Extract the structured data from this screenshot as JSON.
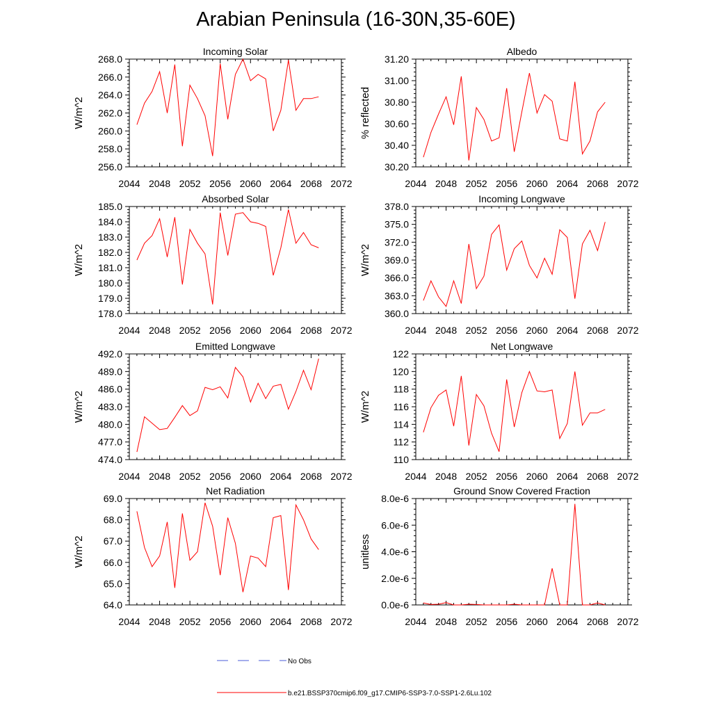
{
  "figure": {
    "title": "Arabian Peninsula (16-30N,35-60E)",
    "legend": [
      {
        "label": "No Obs",
        "color": "#4a5bd8",
        "style": "dashed"
      },
      {
        "label": "b.e21.BSSP370cmip6.f09_g17.CMIP6-SSP3-7.0-SSP1-2.6Lu.102",
        "color": "#ff0000",
        "style": "solid"
      }
    ]
  },
  "chart_data": [
    {
      "type": "line",
      "title": "Incoming Solar",
      "ylabel": "W/m^2",
      "xlim": [
        2044,
        2072
      ],
      "xticks": [
        "2044",
        "2048",
        "2052",
        "2056",
        "2060",
        "2064",
        "2068",
        "2072"
      ],
      "ylim": [
        256,
        268
      ],
      "yticks": [
        "256.0",
        "258.0",
        "260.0",
        "262.0",
        "264.0",
        "266.0",
        "268.0"
      ],
      "x": [
        2045,
        2046,
        2047,
        2048,
        2049,
        2050,
        2051,
        2052,
        2053,
        2054,
        2055,
        2056,
        2057,
        2058,
        2059,
        2060,
        2061,
        2062,
        2063,
        2064,
        2065,
        2066,
        2067,
        2068,
        2069
      ],
      "series": [
        {
          "color": "#ff0000",
          "values": [
            260.7,
            263.1,
            264.4,
            266.6,
            262.0,
            267.4,
            258.3,
            265.1,
            263.6,
            261.7,
            257.2,
            267.5,
            261.3,
            266.3,
            268.0,
            265.6,
            266.3,
            265.8,
            260.0,
            262.3,
            267.9,
            262.3,
            263.6,
            263.6,
            263.8
          ]
        }
      ]
    },
    {
      "type": "line",
      "title": "Albedo",
      "ylabel": "% reflected",
      "xlim": [
        2044,
        2072
      ],
      "xticks": [
        "2044",
        "2048",
        "2052",
        "2056",
        "2060",
        "2064",
        "2068",
        "2072"
      ],
      "ylim": [
        30.2,
        31.2
      ],
      "yticks": [
        "30.20",
        "30.40",
        "30.60",
        "30.80",
        "31.00",
        "31.20"
      ],
      "x": [
        2045,
        2046,
        2047,
        2048,
        2049,
        2050,
        2051,
        2052,
        2053,
        2054,
        2055,
        2056,
        2057,
        2058,
        2059,
        2060,
        2061,
        2062,
        2063,
        2064,
        2065,
        2066,
        2067,
        2068,
        2069
      ],
      "series": [
        {
          "color": "#ff0000",
          "values": [
            30.29,
            30.52,
            30.69,
            30.85,
            30.59,
            31.04,
            30.26,
            30.75,
            30.64,
            30.44,
            30.47,
            30.93,
            30.34,
            30.71,
            31.07,
            30.7,
            30.87,
            30.81,
            30.46,
            30.44,
            30.99,
            30.32,
            30.44,
            30.71,
            30.8
          ]
        }
      ]
    },
    {
      "type": "line",
      "title": "Absorbed Solar",
      "ylabel": "W/m^2",
      "xlim": [
        2044,
        2072
      ],
      "xticks": [
        "2044",
        "2048",
        "2052",
        "2056",
        "2060",
        "2064",
        "2068",
        "2072"
      ],
      "ylim": [
        178,
        185
      ],
      "yticks": [
        "178.0",
        "179.0",
        "180.0",
        "181.0",
        "182.0",
        "183.0",
        "184.0",
        "185.0"
      ],
      "x": [
        2045,
        2046,
        2047,
        2048,
        2049,
        2050,
        2051,
        2052,
        2053,
        2054,
        2055,
        2056,
        2057,
        2058,
        2059,
        2060,
        2061,
        2062,
        2063,
        2064,
        2065,
        2066,
        2067,
        2068,
        2069
      ],
      "series": [
        {
          "color": "#ff0000",
          "values": [
            181.5,
            182.6,
            183.1,
            184.2,
            181.7,
            184.3,
            179.9,
            183.5,
            182.6,
            181.9,
            178.6,
            184.6,
            181.8,
            184.5,
            184.6,
            184.0,
            183.9,
            183.7,
            180.5,
            182.3,
            184.8,
            182.6,
            183.3,
            182.5,
            182.3
          ]
        }
      ]
    },
    {
      "type": "line",
      "title": "Incoming Longwave",
      "ylabel": "W/m^2",
      "xlim": [
        2044,
        2072
      ],
      "xticks": [
        "2044",
        "2048",
        "2052",
        "2056",
        "2060",
        "2064",
        "2068",
        "2072"
      ],
      "ylim": [
        360,
        378
      ],
      "yticks": [
        "360.0",
        "363.0",
        "366.0",
        "369.0",
        "372.0",
        "375.0",
        "378.0"
      ],
      "x": [
        2045,
        2046,
        2047,
        2048,
        2049,
        2050,
        2051,
        2052,
        2053,
        2054,
        2055,
        2056,
        2057,
        2058,
        2059,
        2060,
        2061,
        2062,
        2063,
        2064,
        2065,
        2066,
        2067,
        2068,
        2069
      ],
      "series": [
        {
          "color": "#ff0000",
          "values": [
            362.2,
            365.5,
            362.8,
            361.2,
            365.5,
            361.7,
            371.7,
            364.2,
            366.3,
            373.3,
            374.9,
            367.3,
            370.9,
            372.2,
            368.1,
            366.0,
            369.3,
            366.6,
            374.1,
            372.8,
            362.5,
            371.7,
            374.0,
            370.6,
            375.4
          ]
        }
      ]
    },
    {
      "type": "line",
      "title": "Emitted Longwave",
      "ylabel": "W/m^2",
      "xlim": [
        2044,
        2072
      ],
      "xticks": [
        "2044",
        "2048",
        "2052",
        "2056",
        "2060",
        "2064",
        "2068",
        "2072"
      ],
      "ylim": [
        474,
        492
      ],
      "yticks": [
        "474.0",
        "477.0",
        "480.0",
        "483.0",
        "486.0",
        "489.0",
        "492.0"
      ],
      "x": [
        2045,
        2046,
        2047,
        2048,
        2049,
        2050,
        2051,
        2052,
        2053,
        2054,
        2055,
        2056,
        2057,
        2058,
        2059,
        2060,
        2061,
        2062,
        2063,
        2064,
        2065,
        2066,
        2067,
        2068,
        2069
      ],
      "series": [
        {
          "color": "#ff0000",
          "values": [
            475.3,
            481.3,
            480.2,
            479.1,
            479.3,
            481.2,
            483.2,
            481.5,
            482.3,
            486.3,
            485.9,
            486.4,
            484.5,
            489.7,
            488.1,
            483.8,
            487.0,
            484.4,
            486.5,
            486.8,
            482.6,
            485.6,
            489.2,
            485.9,
            491.2
          ]
        }
      ]
    },
    {
      "type": "line",
      "title": "Net Longwave",
      "ylabel": "W/m^2",
      "xlim": [
        2044,
        2072
      ],
      "xticks": [
        "2044",
        "2048",
        "2052",
        "2056",
        "2060",
        "2064",
        "2068",
        "2072"
      ],
      "ylim": [
        110,
        122
      ],
      "yticks": [
        "110",
        "112",
        "114",
        "116",
        "118",
        "120",
        "122"
      ],
      "x": [
        2045,
        2046,
        2047,
        2048,
        2049,
        2050,
        2051,
        2052,
        2053,
        2054,
        2055,
        2056,
        2057,
        2058,
        2059,
        2060,
        2061,
        2062,
        2063,
        2064,
        2065,
        2066,
        2067,
        2068,
        2069
      ],
      "series": [
        {
          "color": "#ff0000",
          "values": [
            113.1,
            115.9,
            117.3,
            117.9,
            113.8,
            119.5,
            111.6,
            117.4,
            116.1,
            113.0,
            110.9,
            119.1,
            113.7,
            117.6,
            120.0,
            117.8,
            117.7,
            117.9,
            112.4,
            114.1,
            120.0,
            113.9,
            115.3,
            115.3,
            115.7
          ]
        }
      ]
    },
    {
      "type": "line",
      "title": "Net Radiation",
      "ylabel": "W/m^2",
      "xlim": [
        2044,
        2072
      ],
      "xticks": [
        "2044",
        "2048",
        "2052",
        "2056",
        "2060",
        "2064",
        "2068",
        "2072"
      ],
      "ylim": [
        64,
        69
      ],
      "yticks": [
        "64.0",
        "65.0",
        "66.0",
        "67.0",
        "68.0",
        "69.0"
      ],
      "x": [
        2045,
        2046,
        2047,
        2048,
        2049,
        2050,
        2051,
        2052,
        2053,
        2054,
        2055,
        2056,
        2057,
        2058,
        2059,
        2060,
        2061,
        2062,
        2063,
        2064,
        2065,
        2066,
        2067,
        2068,
        2069
      ],
      "series": [
        {
          "color": "#ff0000",
          "values": [
            68.4,
            66.7,
            65.8,
            66.3,
            67.9,
            64.8,
            68.3,
            66.1,
            66.5,
            68.8,
            67.7,
            65.4,
            68.1,
            66.9,
            64.6,
            66.3,
            66.2,
            65.8,
            68.1,
            68.2,
            64.7,
            68.7,
            68.0,
            67.1,
            66.6
          ]
        }
      ]
    },
    {
      "type": "line",
      "title": "Ground Snow Covered Fraction",
      "ylabel": "unitless",
      "xlim": [
        2044,
        2072
      ],
      "xticks": [
        "2044",
        "2048",
        "2052",
        "2056",
        "2060",
        "2064",
        "2068",
        "2072"
      ],
      "ylim": [
        0,
        8e-06
      ],
      "yticks": [
        "0.0e-6",
        "2.0e-6",
        "4.0e-6",
        "6.0e-6",
        "8.0e-6"
      ],
      "x": [
        2045,
        2046,
        2047,
        2048,
        2049,
        2050,
        2051,
        2052,
        2053,
        2054,
        2055,
        2056,
        2057,
        2058,
        2059,
        2060,
        2061,
        2062,
        2063,
        2064,
        2065,
        2066,
        2067,
        2068,
        2069
      ],
      "series": [
        {
          "color": "#ff0000",
          "values": [
            1.5e-07,
            3e-08,
            5e-08,
            1.8e-07,
            0.0,
            0.0,
            5e-08,
            3e-08,
            0.0,
            0.0,
            0.0,
            0.0,
            5e-08,
            0.0,
            0.0,
            0.0,
            0.0,
            2.75e-06,
            0.0,
            0.0,
            7.6e-06,
            0.0,
            0.0,
            1.5e-07,
            0.0
          ]
        }
      ]
    }
  ]
}
